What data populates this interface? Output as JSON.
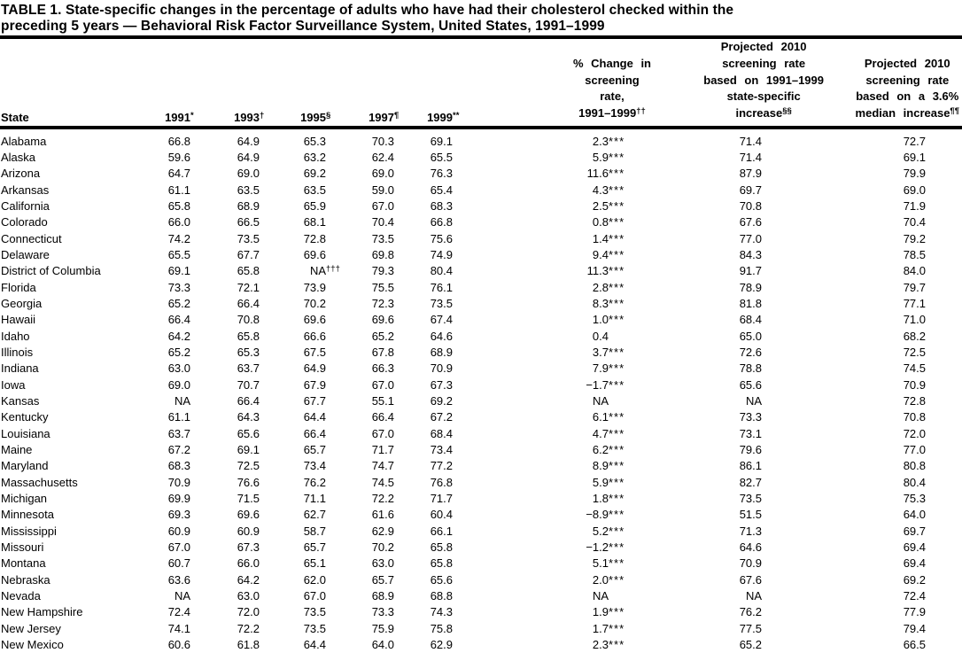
{
  "colors": {
    "text": "#000000",
    "background": "#ffffff"
  },
  "title": {
    "line1": "TABLE 1. State-specific changes in the percentage of adults who have had their cholesterol checked within the",
    "line2": "preceding 5 years — Behavioral Risk Factor Surveillance System, United States, 1991–1999"
  },
  "columns": {
    "state": "State",
    "years": [
      {
        "label": "1991",
        "sup": "*"
      },
      {
        "label": "1993",
        "sup": "†"
      },
      {
        "label": "1995",
        "sup": "§"
      },
      {
        "label": "1997",
        "sup": "¶"
      },
      {
        "label": "1999",
        "sup": "**"
      }
    ],
    "change": {
      "lines": [
        "% Change in",
        "screening",
        "rate,",
        "1991–1999"
      ],
      "sup": "††"
    },
    "proj_specific": {
      "lines": [
        "Projected 2010",
        "screening rate",
        "based on 1991–1999",
        "state-specific",
        "increase"
      ],
      "sup": "§§"
    },
    "proj_median": {
      "lines": [
        "Projected 2010",
        "screening rate",
        "based on a 3.6%",
        "median increase"
      ],
      "sup": "¶¶"
    }
  },
  "table": {
    "note": "cell values may contain ^ separating base value from its superscript marker",
    "rows": [
      [
        "Alabama",
        "66.8",
        "64.9",
        "65.3",
        "70.3",
        "69.1",
        "2.3^***",
        "71.4",
        "72.7"
      ],
      [
        "Alaska",
        "59.6",
        "64.9",
        "63.2",
        "62.4",
        "65.5",
        "5.9^***",
        "71.4",
        "69.1"
      ],
      [
        "Arizona",
        "64.7",
        "69.0",
        "69.2",
        "69.0",
        "76.3",
        "11.6^***",
        "87.9",
        "79.9"
      ],
      [
        "Arkansas",
        "61.1",
        "63.5",
        "63.5",
        "59.0",
        "65.4",
        "4.3^***",
        "69.7",
        "69.0"
      ],
      [
        "California",
        "65.8",
        "68.9",
        "65.9",
        "67.0",
        "68.3",
        "2.5^***",
        "70.8",
        "71.9"
      ],
      [
        "Colorado",
        "66.0",
        "66.5",
        "68.1",
        "70.4",
        "66.8",
        "0.8^***",
        "67.6",
        "70.4"
      ],
      [
        "Connecticut",
        "74.2",
        "73.5",
        "72.8",
        "73.5",
        "75.6",
        "1.4^***",
        "77.0",
        "79.2"
      ],
      [
        "Delaware",
        "65.5",
        "67.7",
        "69.6",
        "69.8",
        "74.9",
        "9.4^***",
        "84.3",
        "78.5"
      ],
      [
        "District of Columbia",
        "69.1",
        "65.8",
        "NA^†††",
        "79.3",
        "80.4",
        "11.3^***",
        "91.7",
        "84.0"
      ],
      [
        "Florida",
        "73.3",
        "72.1",
        "73.9",
        "75.5",
        "76.1",
        "2.8^***",
        "78.9",
        "79.7"
      ],
      [
        "Georgia",
        "65.2",
        "66.4",
        "70.2",
        "72.3",
        "73.5",
        "8.3^***",
        "81.8",
        "77.1"
      ],
      [
        "Hawaii",
        "66.4",
        "70.8",
        "69.6",
        "69.6",
        "67.4",
        "1.0^***",
        "68.4",
        "71.0"
      ],
      [
        "Idaho",
        "64.2",
        "65.8",
        "66.6",
        "65.2",
        "64.6",
        "0.4",
        "65.0",
        "68.2"
      ],
      [
        "Illinois",
        "65.2",
        "65.3",
        "67.5",
        "67.8",
        "68.9",
        "3.7^***",
        "72.6",
        "72.5"
      ],
      [
        "Indiana",
        "63.0",
        "63.7",
        "64.9",
        "66.3",
        "70.9",
        "7.9^***",
        "78.8",
        "74.5"
      ],
      [
        "Iowa",
        "69.0",
        "70.7",
        "67.9",
        "67.0",
        "67.3",
        "−1.7^***",
        "65.6",
        "70.9"
      ],
      [
        "Kansas",
        "NA",
        "66.4",
        "67.7",
        "55.1",
        "69.2",
        "NA",
        "NA",
        "72.8"
      ],
      [
        "Kentucky",
        "61.1",
        "64.3",
        "64.4",
        "66.4",
        "67.2",
        "6.1^***",
        "73.3",
        "70.8"
      ],
      [
        "Louisiana",
        "63.7",
        "65.6",
        "66.4",
        "67.0",
        "68.4",
        "4.7^***",
        "73.1",
        "72.0"
      ],
      [
        "Maine",
        "67.2",
        "69.1",
        "65.7",
        "71.7",
        "73.4",
        "6.2^***",
        "79.6",
        "77.0"
      ],
      [
        "Maryland",
        "68.3",
        "72.5",
        "73.4",
        "74.7",
        "77.2",
        "8.9^***",
        "86.1",
        "80.8"
      ],
      [
        "Massachusetts",
        "70.9",
        "76.6",
        "76.2",
        "74.5",
        "76.8",
        "5.9^***",
        "82.7",
        "80.4"
      ],
      [
        "Michigan",
        "69.9",
        "71.5",
        "71.1",
        "72.2",
        "71.7",
        "1.8^***",
        "73.5",
        "75.3"
      ],
      [
        "Minnesota",
        "69.3",
        "69.6",
        "62.7",
        "61.6",
        "60.4",
        "−8.9^***",
        "51.5",
        "64.0"
      ],
      [
        "Mississippi",
        "60.9",
        "60.9",
        "58.7",
        "62.9",
        "66.1",
        "5.2^***",
        "71.3",
        "69.7"
      ],
      [
        "Missouri",
        "67.0",
        "67.3",
        "65.7",
        "70.2",
        "65.8",
        "−1.2^***",
        "64.6",
        "69.4"
      ],
      [
        "Montana",
        "60.7",
        "66.0",
        "65.1",
        "63.0",
        "65.8",
        "5.1^***",
        "70.9",
        "69.4"
      ],
      [
        "Nebraska",
        "63.6",
        "64.2",
        "62.0",
        "65.7",
        "65.6",
        "2.0^***",
        "67.6",
        "69.2"
      ],
      [
        "Nevada",
        "NA",
        "63.0",
        "67.0",
        "68.9",
        "68.8",
        "NA",
        "NA",
        "72.4"
      ],
      [
        "New Hampshire",
        "72.4",
        "72.0",
        "73.5",
        "73.3",
        "74.3",
        "1.9^***",
        "76.2",
        "77.9"
      ],
      [
        "New Jersey",
        "74.1",
        "72.2",
        "73.5",
        "75.9",
        "75.8",
        "1.7^***",
        "77.5",
        "79.4"
      ],
      [
        "New Mexico",
        "60.6",
        "61.8",
        "64.4",
        "64.0",
        "62.9",
        "2.3^***",
        "65.2",
        "66.5"
      ]
    ]
  }
}
